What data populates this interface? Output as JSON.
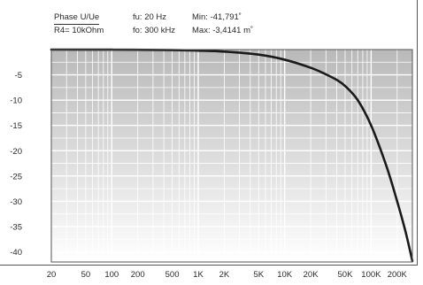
{
  "header": {
    "row1": {
      "col1": "Phase U/Ue",
      "col2": "fu: 20 Hz",
      "col3": "Min: -41,791˚"
    },
    "row2": {
      "col1": "R4= 10kOhm",
      "col2": "fo: 300 kHz",
      "col3": "Max: -3,4141 m˚"
    }
  },
  "chart_data": {
    "type": "line",
    "title": "",
    "xlabel": "",
    "ylabel": "",
    "x_scale": "log",
    "xlim": [
      20,
      300000
    ],
    "ylim": [
      -42,
      0
    ],
    "grid": true,
    "x_tick_values": [
      20,
      50,
      100,
      200,
      500,
      1000,
      2000,
      5000,
      10000,
      20000,
      50000,
      100000,
      200000
    ],
    "x_tick_labels": [
      "20",
      "50",
      "100",
      "200",
      "500",
      "1K",
      "2K",
      "5K",
      "10K",
      "20K",
      "50K",
      "100K",
      "200K"
    ],
    "y_tick_values": [
      -5,
      -10,
      -15,
      -20,
      -25,
      -30,
      -35,
      -40
    ],
    "y_tick_labels": [
      "-5",
      "-10",
      "-15",
      "-20",
      "-25",
      "-30",
      "-35",
      "-40"
    ],
    "colors": {
      "line": "#1a1a1a",
      "grid": "#ffffff",
      "shade_top": "#b9b9b9",
      "shade_bottom": "#ffffff"
    },
    "series": [
      {
        "x": [
          20,
          100,
          500,
          1000,
          2000,
          5000,
          10000,
          20000,
          30000,
          40000,
          50000,
          70000,
          100000,
          150000,
          200000,
          250000,
          300000
        ],
        "y": [
          0,
          -0.02,
          -0.1,
          -0.2,
          -0.4,
          -1.0,
          -2.0,
          -3.6,
          -4.9,
          -6.0,
          -7.2,
          -10.0,
          -15.0,
          -23.0,
          -30.0,
          -36.0,
          -41.8
        ]
      }
    ]
  }
}
